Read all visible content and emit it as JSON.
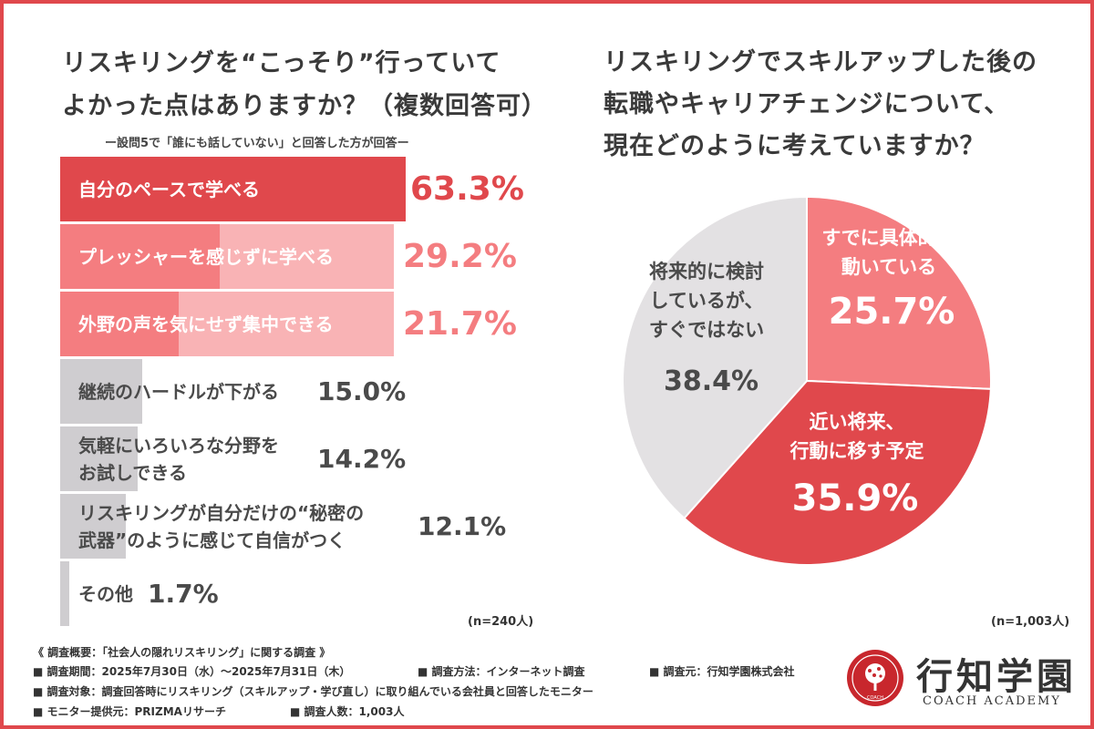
{
  "colors": {
    "accent": "#e0484c",
    "mid": "#f47d80",
    "light": "#f9b3b5",
    "gray": "#e3e1e3",
    "gray_bar": "#cfcdd0",
    "gray_text": "#4a4a4a"
  },
  "left": {
    "title_line1": "リスキリングを“こっそり”行っていて",
    "title_line2": "よかった点はありますか？（複数回答可）",
    "subtitle": "ー設問5で「誰にも話していない」と回答した方が回答ー",
    "n_label": "(n=240人)"
  },
  "right": {
    "title_line1": "リスキリングでスキルアップした後の",
    "title_line2": "転職やキャリアチェンジについて、",
    "title_line3": "現在どのように考えていますか？",
    "n_label": "(n=1,003人)"
  },
  "chart_data": [
    {
      "type": "bar",
      "orientation": "horizontal",
      "categories": [
        "自分のペースで学べる",
        "プレッシャーを感じずに学べる",
        "外野の声を気にせず集中できる",
        "継続のハードルが下がる",
        "気軽にいろいろな分野をお試しできる",
        "リスキリングが自分だけの“秘密の武器”のように感じて自信がつく",
        "その他"
      ],
      "label_lines": [
        [
          "自分のペースで学べる"
        ],
        [
          "プレッシャーを感じずに学べる"
        ],
        [
          "外野の声を気にせず集中できる"
        ],
        [
          "継続のハードルが下がる"
        ],
        [
          "気軽にいろいろな分野を",
          "お試しできる"
        ],
        [
          "リスキリングが自分だけの“秘密の",
          "武器”のように感じて自信がつく"
        ],
        [
          "その他"
        ]
      ],
      "values": [
        63.3,
        29.2,
        21.7,
        15.0,
        14.2,
        12.1,
        1.7
      ],
      "value_labels": [
        "63.3%",
        "29.2%",
        "21.7%",
        "15.0%",
        "14.2%",
        "12.1%",
        "1.7%"
      ],
      "xlim": [
        0,
        100
      ]
    },
    {
      "type": "pie",
      "slices": [
        {
          "label_lines": [
            "すでに具体的に",
            "動いている"
          ],
          "value": 25.7,
          "value_label": "25.7%",
          "color": "#f47d80"
        },
        {
          "label_lines": [
            "近い将来、",
            "行動に移す予定"
          ],
          "value": 35.9,
          "value_label": "35.9%",
          "color": "#e0484c"
        },
        {
          "label_lines": [
            "将来的に検討",
            "しているが、",
            "すぐではない"
          ],
          "value": 38.4,
          "value_label": "38.4%",
          "color": "#e3e1e3"
        }
      ]
    }
  ],
  "footer": {
    "line1": "《 調査概要：「社会人の隠れリスキリング」に関する調査 》",
    "period": "■ 調査期間：2025年7月30日（水）〜2025年7月31日（木）",
    "method": "■ 調査方法：インターネット調査",
    "source": "■ 調査元：行知学園株式会社",
    "target": "■ 調査対象：調査回答時にリスキリング（スキルアップ・学び直し）に取り組んでいる会社員と回答したモニター",
    "provider": "■ モニター提供元：PRIZMAリサーチ",
    "count": "■ 調査人数：1,003人"
  },
  "brand": {
    "name_jp": "行知学園",
    "name_en": "COACH ACADEMY",
    "seal_text": "COACH"
  }
}
